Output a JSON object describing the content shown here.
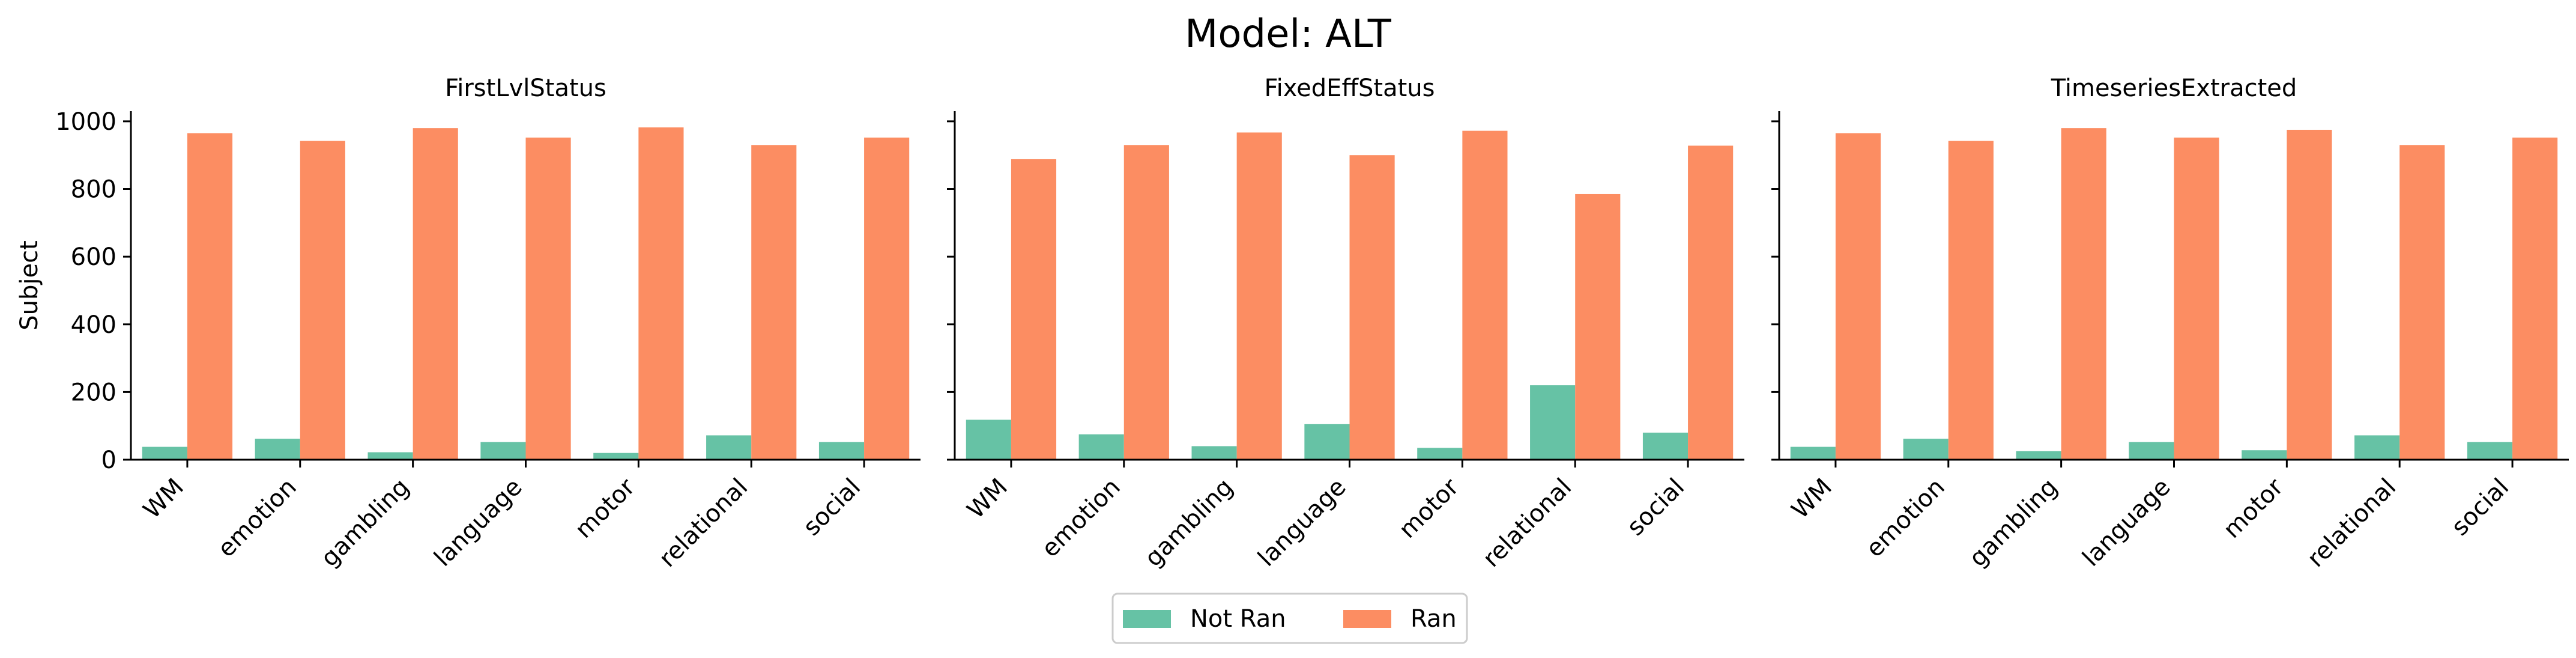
{
  "figure": {
    "suptitle": "Model: ALT"
  },
  "colors": {
    "not_ran": "#66c2a5",
    "ran": "#fc8d62"
  },
  "chart_data": {
    "type": "bar",
    "ylabel": "Subject",
    "ylim": [
      0,
      1030
    ],
    "yticks": [
      0,
      200,
      400,
      600,
      800,
      1000
    ],
    "categories": [
      "WM",
      "emotion",
      "gambling",
      "language",
      "motor",
      "relational",
      "social"
    ],
    "legend": {
      "position": "bottom-center",
      "entries": [
        "Not Ran",
        "Ran"
      ]
    },
    "panels": [
      {
        "title": "FirstLvlStatus",
        "series": [
          {
            "name": "Not Ran",
            "values": [
              38,
              62,
              22,
              52,
              20,
              72,
              52
            ]
          },
          {
            "name": "Ran",
            "values": [
              965,
              942,
              980,
              952,
              982,
              930,
              952
            ]
          }
        ]
      },
      {
        "title": "FixedEffStatus",
        "series": [
          {
            "name": "Not Ran",
            "values": [
              118,
              75,
              40,
              105,
              35,
              220,
              80
            ]
          },
          {
            "name": "Ran",
            "values": [
              888,
              930,
              967,
              900,
              972,
              785,
              928
            ]
          }
        ]
      },
      {
        "title": "TimeseriesExtracted",
        "series": [
          {
            "name": "Not Ran",
            "values": [
              38,
              62,
              25,
              52,
              28,
              72,
              52
            ]
          },
          {
            "name": "Ran",
            "values": [
              965,
              942,
              980,
              952,
              975,
              930,
              952
            ]
          }
        ]
      }
    ]
  }
}
